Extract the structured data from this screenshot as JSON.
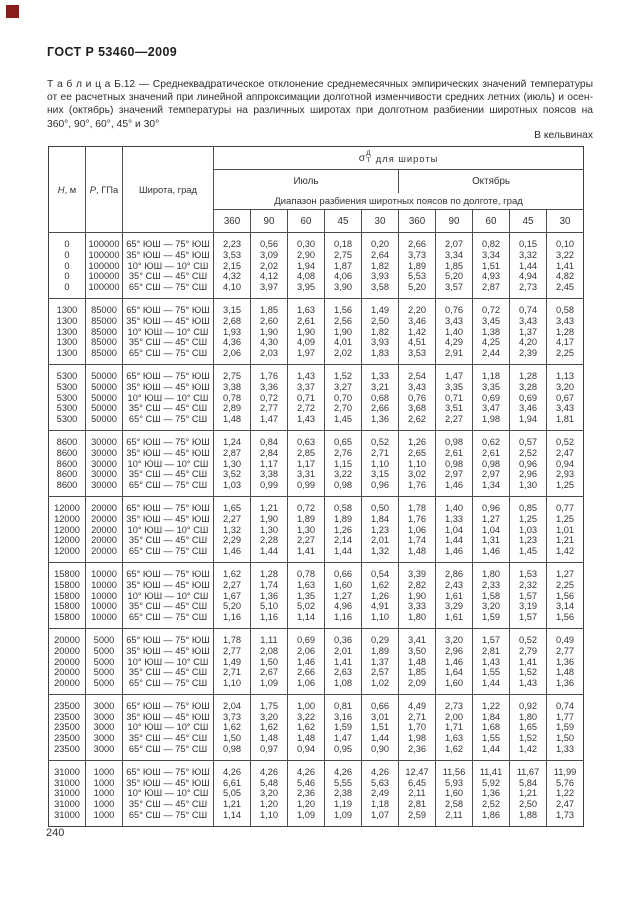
{
  "page": {
    "standard": "ГОСТ Р 53460—2009",
    "page_number": "240",
    "units_note": "В кельвинах",
    "corner_mark_color": "#8b1d1d"
  },
  "caption": {
    "line1": "Т а б л и ц а  Б.12 — Среднеквадратическое отклонение среднемесячных эмпирических значений температуры",
    "line2": "от ее расчетных значений при линейной аппроксимации долготной изменчивости средних летних (июль) и осен-",
    "line3": "них (октябрь) значений температуры на различных широтах при долготном разбиении широтных поясов на",
    "line4": "360°, 90°, 60°, 45° и 30°"
  },
  "table": {
    "columns": {
      "h_sym": "Н",
      "h_unit": ", м",
      "p_sym": "Р",
      "p_unit": ", ГПа",
      "lat": "Широта, град",
      "sigma_symbol": "σ",
      "sigma_sup": "Д",
      "sigma_sub": "Т",
      "sigma_label": "для широты",
      "july": "Июль",
      "october": "Октябрь",
      "range_label": "Диапазон разбиения широтных поясов по долготе, град",
      "subcols": [
        "360",
        "90",
        "60",
        "45",
        "30",
        "360",
        "90",
        "60",
        "45",
        "30"
      ]
    },
    "groups": [
      {
        "h": "0",
        "p": "100000",
        "rows": [
          {
            "lat": "65° ЮШ — 75° ЮШ",
            "values": [
              "2,23",
              "0,56",
              "0,30",
              "0,18",
              "0,20",
              "2,66",
              "2,07",
              "0,82",
              "0,15",
              "0,10"
            ]
          },
          {
            "lat": "35° ЮШ — 45° ЮШ",
            "values": [
              "3,53",
              "3,09",
              "2,90",
              "2,75",
              "2,64",
              "3,73",
              "3,34",
              "3,34",
              "3,32",
              "3,22"
            ]
          },
          {
            "lat": "10° ЮШ — 10° СШ",
            "values": [
              "2,15",
              "2,02",
              "1,94",
              "1,87",
              "1,82",
              "1,89",
              "1,85",
              "1,51",
              "1,44",
              "1,41"
            ]
          },
          {
            "lat": "35° СШ — 45° СШ",
            "values": [
              "4,32",
              "4,12",
              "4,08",
              "4,06",
              "3,93",
              "5,53",
              "5,20",
              "4,93",
              "4,94",
              "4,82"
            ]
          },
          {
            "lat": "65° СШ — 75° СШ",
            "values": [
              "4,10",
              "3,97",
              "3,95",
              "3,90",
              "3,58",
              "5,20",
              "3,57",
              "2,87",
              "2,73",
              "2,45"
            ]
          }
        ]
      },
      {
        "h": "1300",
        "p": "85000",
        "rows": [
          {
            "lat": "65° ЮШ — 75° ЮШ",
            "values": [
              "3,15",
              "1,85",
              "1,63",
              "1,56",
              "1,49",
              "2,20",
              "0,76",
              "0,72",
              "0,74",
              "0,58"
            ]
          },
          {
            "lat": "35° ЮШ — 45° ЮШ",
            "values": [
              "2,68",
              "2,60",
              "2,61",
              "2,56",
              "2,50",
              "3,46",
              "3,43",
              "3,45",
              "3,43",
              "3,43"
            ]
          },
          {
            "lat": "10° ЮШ — 10° СШ",
            "values": [
              "1,93",
              "1,90",
              "1,90",
              "1,90",
              "1,82",
              "1,42",
              "1,40",
              "1,38",
              "1,37",
              "1,28"
            ]
          },
          {
            "lat": "35° СШ — 45° СШ",
            "values": [
              "4,36",
              "4,30",
              "4,09",
              "4,01",
              "3,93",
              "4,51",
              "4,29",
              "4,25",
              "4,20",
              "4,17"
            ]
          },
          {
            "lat": "65° СШ — 75° СШ",
            "values": [
              "2,06",
              "2,03",
              "1,97",
              "2,02",
              "1,83",
              "3,53",
              "2,91",
              "2,44",
              "2,39",
              "2,25"
            ]
          }
        ]
      },
      {
        "h": "5300",
        "p": "50000",
        "rows": [
          {
            "lat": "65° ЮШ — 75° ЮШ",
            "values": [
              "2,75",
              "1,76",
              "1,43",
              "1,52",
              "1,33",
              "2,54",
              "1,47",
              "1,18",
              "1,28",
              "1,13"
            ]
          },
          {
            "lat": "35° ЮШ — 45° ЮШ",
            "values": [
              "3,38",
              "3,36",
              "3,37",
              "3,27",
              "3,21",
              "3,43",
              "3,35",
              "3,35",
              "3,28",
              "3,20"
            ]
          },
          {
            "lat": "10° ЮШ — 10° СШ",
            "values": [
              "0,78",
              "0,72",
              "0,71",
              "0,70",
              "0,68",
              "0,76",
              "0,71",
              "0,69",
              "0,69",
              "0,67"
            ]
          },
          {
            "lat": "35° СШ — 45° СШ",
            "values": [
              "2,89",
              "2,77",
              "2,72",
              "2,70",
              "2,66",
              "3,68",
              "3,51",
              "3,47",
              "3,46",
              "3,43"
            ]
          },
          {
            "lat": "65° СШ — 75° СШ",
            "values": [
              "1,48",
              "1,47",
              "1,43",
              "1,45",
              "1,36",
              "2,62",
              "2,27",
              "1,98",
              "1,94",
              "1,81"
            ]
          }
        ]
      },
      {
        "h": "8600",
        "p": "30000",
        "rows": [
          {
            "lat": "65° ЮШ — 75° ЮШ",
            "values": [
              "1,24",
              "0,84",
              "0,63",
              "0,65",
              "0,52",
              "1,26",
              "0,98",
              "0,62",
              "0,57",
              "0,52"
            ]
          },
          {
            "lat": "35° ЮШ — 45° ЮШ",
            "values": [
              "2,87",
              "2,84",
              "2,85",
              "2,76",
              "2,71",
              "2,65",
              "2,61",
              "2,61",
              "2,52",
              "2,47"
            ]
          },
          {
            "lat": "10° ЮШ — 10° СШ",
            "values": [
              "1,30",
              "1,17",
              "1,17",
              "1,15",
              "1,10",
              "1,10",
              "0,98",
              "0,98",
              "0,96",
              "0,94"
            ]
          },
          {
            "lat": "35° СШ — 45° СШ",
            "values": [
              "3,52",
              "3,38",
              "3,31",
              "3,22",
              "3,15",
              "3,02",
              "2,97",
              "2,97",
              "2,96",
              "2,93"
            ]
          },
          {
            "lat": "65° СШ — 75° СШ",
            "values": [
              "1,03",
              "0,99",
              "0,99",
              "0,98",
              "0,96",
              "1,76",
              "1,46",
              "1,34",
              "1,30",
              "1,25"
            ]
          }
        ]
      },
      {
        "h": "12000",
        "p": "20000",
        "rows": [
          {
            "lat": "65° ЮШ — 75° ЮШ",
            "values": [
              "1,65",
              "1,21",
              "0,72",
              "0,58",
              "0,50",
              "1,78",
              "1,40",
              "0,96",
              "0,85",
              "0,77"
            ]
          },
          {
            "lat": "35° ЮШ — 45° ЮШ",
            "values": [
              "2,27",
              "1,90",
              "1,89",
              "1,89",
              "1,84",
              "1,76",
              "1,33",
              "1,27",
              "1,25",
              "1,25"
            ]
          },
          {
            "lat": "10° ЮШ — 10° СШ",
            "values": [
              "1,32",
              "1,30",
              "1,30",
              "1,26",
              "1,23",
              "1,06",
              "1,04",
              "1,04",
              "1,03",
              "1,01"
            ]
          },
          {
            "lat": "35° СШ — 45° СШ",
            "values": [
              "2,29",
              "2,28",
              "2,27",
              "2,14",
              "2,01",
              "1,74",
              "1,44",
              "1,31",
              "1,23",
              "1,21"
            ]
          },
          {
            "lat": "65° СШ — 75° СШ",
            "values": [
              "1,46",
              "1,44",
              "1,41",
              "1,44",
              "1,32",
              "1,48",
              "1,46",
              "1,46",
              "1,45",
              "1,42"
            ]
          }
        ]
      },
      {
        "h": "15800",
        "p": "10000",
        "rows": [
          {
            "lat": "65° ЮШ — 75° ЮШ",
            "values": [
              "1,62",
              "1,28",
              "0,78",
              "0,66",
              "0,54",
              "3,39",
              "2,86",
              "1,80",
              "1,53",
              "1,27"
            ]
          },
          {
            "lat": "35° ЮШ — 45° ЮШ",
            "values": [
              "2,27",
              "1,74",
              "1,63",
              "1,60",
              "1,62",
              "2,82",
              "2,43",
              "2,33",
              "2,32",
              "2,25"
            ]
          },
          {
            "lat": "10° ЮШ — 10° СШ",
            "values": [
              "1,67",
              "1,36",
              "1,35",
              "1,27",
              "1,26",
              "1,90",
              "1,61",
              "1,58",
              "1,57",
              "1,56"
            ]
          },
          {
            "lat": "35° СШ — 45° СШ",
            "values": [
              "5,20",
              "5,10",
              "5,02",
              "4,96",
              "4,91",
              "3,33",
              "3,29",
              "3,20",
              "3,19",
              "3,14"
            ]
          },
          {
            "lat": "65° СШ — 75° СШ",
            "values": [
              "1,16",
              "1,16",
              "1,14",
              "1,16",
              "1,10",
              "1,80",
              "1,61",
              "1,59",
              "1,57",
              "1,56"
            ]
          }
        ]
      },
      {
        "h": "20000",
        "p": "5000",
        "rows": [
          {
            "lat": "65° ЮШ — 75° ЮШ",
            "values": [
              "1,78",
              "1,11",
              "0,69",
              "0,36",
              "0,29",
              "3,41",
              "3,20",
              "1,57",
              "0,52",
              "0,49"
            ]
          },
          {
            "lat": "35° ЮШ — 45° ЮШ",
            "values": [
              "2,77",
              "2,08",
              "2,06",
              "2,01",
              "1,89",
              "3,50",
              "2,96",
              "2,81",
              "2,79",
              "2,77"
            ]
          },
          {
            "lat": "10° ЮШ — 10° СШ",
            "values": [
              "1,49",
              "1,50",
              "1,46",
              "1,41",
              "1,37",
              "1,48",
              "1,46",
              "1,43",
              "1,41",
              "1,36"
            ]
          },
          {
            "lat": "35° СШ — 45° СШ",
            "values": [
              "2,71",
              "2,67",
              "2,66",
              "2,63",
              "2,57",
              "1,85",
              "1,64",
              "1,55",
              "1,52",
              "1,48"
            ]
          },
          {
            "lat": "65° СШ — 75° СШ",
            "values": [
              "1,10",
              "1,09",
              "1,06",
              "1,08",
              "1,02",
              "2,09",
              "1,60",
              "1,44",
              "1,43",
              "1,36"
            ]
          }
        ]
      },
      {
        "h": "23500",
        "p": "3000",
        "rows": [
          {
            "lat": "65° ЮШ — 75° ЮШ",
            "values": [
              "2,04",
              "1,75",
              "1,00",
              "0,81",
              "0,66",
              "4,49",
              "2,73",
              "1,22",
              "0,92",
              "0,74"
            ]
          },
          {
            "lat": "35° ЮШ — 45° ЮШ",
            "values": [
              "3,73",
              "3,20",
              "3,22",
              "3,16",
              "3,01",
              "2,71",
              "2,00",
              "1,84",
              "1,80",
              "1,77"
            ]
          },
          {
            "lat": "10° ЮШ — 10° СШ",
            "values": [
              "1,62",
              "1,62",
              "1,62",
              "1,59",
              "1,51",
              "1,70",
              "1,71",
              "1,68",
              "1,65",
              "1,59"
            ]
          },
          {
            "lat": "35° СШ — 45° СШ",
            "values": [
              "1,50",
              "1,48",
              "1,48",
              "1,47",
              "1,44",
              "1,98",
              "1,63",
              "1,55",
              "1,52",
              "1,50"
            ]
          },
          {
            "lat": "65° СШ — 75° СШ",
            "values": [
              "0,98",
              "0,97",
              "0,94",
              "0,95",
              "0,90",
              "2,36",
              "1,62",
              "1,44",
              "1,42",
              "1,33"
            ]
          }
        ]
      },
      {
        "h": "31000",
        "p": "1000",
        "rows": [
          {
            "lat": "65° ЮШ — 75° ЮШ",
            "values": [
              "4,26",
              "4,26",
              "4,26",
              "4,26",
              "4,26",
              "12,47",
              "11,56",
              "11,41",
              "11,67",
              "11,99"
            ]
          },
          {
            "lat": "35° ЮШ — 45° ЮШ",
            "values": [
              "6,61",
              "5,48",
              "5,46",
              "5,55",
              "5,63",
              "6,45",
              "5,93",
              "5,92",
              "5,84",
              "5,76"
            ]
          },
          {
            "lat": "10° ЮШ — 10° СШ",
            "values": [
              "5,05",
              "3,20",
              "2,36",
              "2,38",
              "2,49",
              "2,11",
              "1,60",
              "1,36",
              "1,21",
              "1,22"
            ]
          },
          {
            "lat": "35° СШ — 45° СШ",
            "values": [
              "1,21",
              "1,20",
              "1,20",
              "1,19",
              "1,18",
              "2,81",
              "2,58",
              "2,52",
              "2,50",
              "2,47"
            ]
          },
          {
            "lat": "65° СШ — 75° СШ",
            "values": [
              "1,14",
              "1,10",
              "1,09",
              "1,09",
              "1,07",
              "2,59",
              "2,11",
              "1,86",
              "1,88",
              "1,73"
            ]
          }
        ]
      }
    ]
  }
}
